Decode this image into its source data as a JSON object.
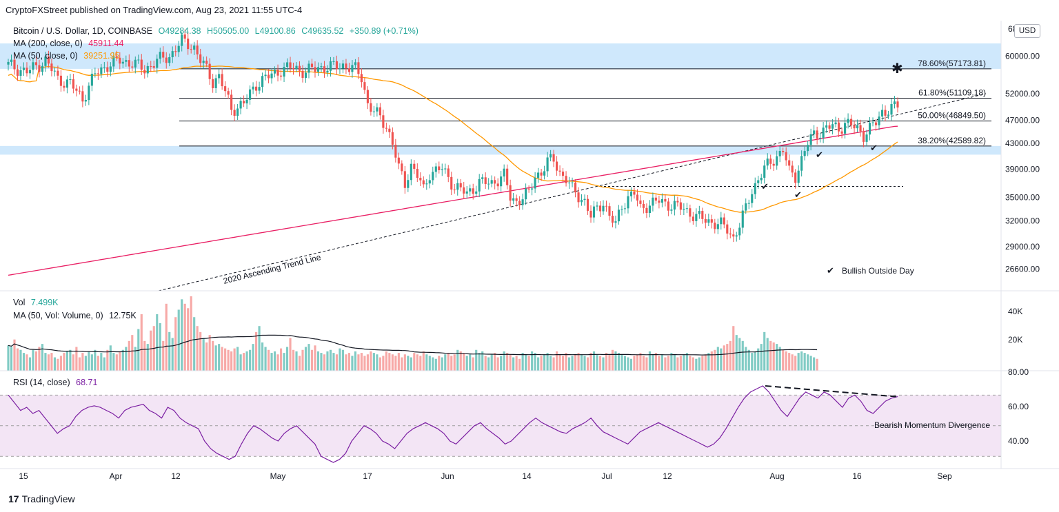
{
  "header": {
    "published": "CryptoFXStreet published on TradingView.com, Aug 23, 2021 11:55 UTC-4",
    "symbol": "Bitcoin / U.S. Dollar, 1D, COINBASE",
    "ohlc": {
      "o": "O49284.38",
      "h": "H50505.00",
      "l": "L49100.86",
      "c": "C49635.52",
      "chg": "+350.89 (+0.71%)"
    },
    "ma200_label": "MA (200, close, 0)",
    "ma200_value": "45911.44",
    "ma50_label": "MA (50, close, 0)",
    "ma50_value": "39251.95",
    "currency": "USD",
    "vol_label": "Vol",
    "vol_value": "7.499K",
    "volma_label": "MA (50, Vol: Volume, 0)",
    "volma_value": "12.75K",
    "rsi_label": "RSI (14, close)",
    "rsi_value": "68.71"
  },
  "brand": "TradingView",
  "colors": {
    "up": "#26a69a",
    "down": "#ef5350",
    "ma200": "#e91e63",
    "ma50": "#ff9800",
    "rsi": "#7b1fa2",
    "zone": "#bbdefb",
    "rsiband": "#f3e5f5"
  },
  "chart_data": {
    "type": "candlestick",
    "price_axis": {
      "ticks": [
        "60000.00",
        "52000.00",
        "47000.00",
        "43000.00",
        "39000.00",
        "35000.00",
        "32000.00",
        "29000.00",
        "26600.00"
      ],
      "top_label": "68",
      "range": [
        24500,
        68000
      ],
      "scale": "log"
    },
    "time_axis": {
      "ticks": [
        "15",
        "Apr",
        "12",
        "May",
        "17",
        "Jun",
        "14",
        "Jul",
        "12",
        "Aug",
        "16",
        "Sep"
      ]
    },
    "fib_levels": [
      {
        "label": "78.60%(57173.81)",
        "value": 57173.81
      },
      {
        "label": "61.80%(51109.18)",
        "value": 51109.18
      },
      {
        "label": "50.00%(46849.50)",
        "value": 46849.5
      },
      {
        "label": "38.20%(42589.82)",
        "value": 42589.82
      }
    ],
    "zones": [
      {
        "from": 57173.81,
        "to": 63000
      },
      {
        "from": 41200,
        "to": 42589.82
      }
    ],
    "support_line": 36500,
    "annotations": {
      "trendline": "2020 Ascending Trend Line",
      "legend": "Bullish Outside Day",
      "divergence": "Bearish Momentum Divergence",
      "target_marker": "✱",
      "check_marker": "✔"
    },
    "anchors": [
      [
        0,
        58000
      ],
      [
        6,
        56500
      ],
      [
        12,
        59000
      ],
      [
        16,
        55000
      ],
      [
        20,
        54000
      ],
      [
        24,
        51000
      ],
      [
        28,
        56000
      ],
      [
        32,
        58000
      ],
      [
        36,
        59000
      ],
      [
        40,
        58500
      ],
      [
        44,
        57000
      ],
      [
        48,
        59000
      ],
      [
        52,
        60000
      ],
      [
        56,
        63500
      ],
      [
        58,
        63000
      ],
      [
        60,
        62000
      ],
      [
        62,
        59000
      ],
      [
        64,
        57000
      ],
      [
        66,
        54500
      ],
      [
        68,
        55500
      ],
      [
        72,
        49000
      ],
      [
        76,
        50000
      ],
      [
        80,
        54000
      ],
      [
        84,
        55500
      ],
      [
        88,
        57000
      ],
      [
        92,
        57500
      ],
      [
        96,
        56500
      ],
      [
        100,
        57500
      ],
      [
        104,
        57500
      ],
      [
        108,
        58000
      ],
      [
        112,
        57000
      ],
      [
        114,
        55500
      ],
      [
        116,
        50000
      ],
      [
        118,
        48500
      ],
      [
        120,
        47500
      ],
      [
        122,
        46000
      ],
      [
        124,
        43000
      ],
      [
        126,
        39000
      ],
      [
        128,
        37000
      ],
      [
        130,
        39500
      ],
      [
        132,
        38000
      ],
      [
        134,
        36000
      ],
      [
        136,
        38500
      ],
      [
        140,
        39000
      ],
      [
        144,
        36500
      ],
      [
        148,
        35500
      ],
      [
        152,
        37000
      ],
      [
        156,
        37000
      ],
      [
        160,
        38000
      ],
      [
        162,
        35000
      ],
      [
        164,
        34500
      ],
      [
        168,
        35500
      ],
      [
        170,
        38000
      ],
      [
        172,
        38500
      ],
      [
        174,
        40000
      ],
      [
        176,
        40500
      ],
      [
        178,
        38500
      ],
      [
        180,
        37500
      ],
      [
        182,
        36000
      ],
      [
        186,
        34500
      ],
      [
        188,
        32500
      ],
      [
        190,
        33500
      ],
      [
        192,
        34500
      ],
      [
        194,
        32500
      ],
      [
        196,
        31500
      ],
      [
        198,
        34000
      ],
      [
        200,
        35000
      ],
      [
        202,
        35500
      ],
      [
        204,
        33500
      ],
      [
        206,
        34000
      ],
      [
        210,
        34500
      ],
      [
        214,
        34000
      ],
      [
        218,
        33500
      ],
      [
        222,
        32500
      ],
      [
        226,
        32000
      ],
      [
        230,
        31500
      ],
      [
        232,
        31000
      ],
      [
        234,
        30000
      ],
      [
        236,
        31500
      ],
      [
        238,
        33500
      ],
      [
        240,
        36000
      ],
      [
        242,
        37500
      ],
      [
        244,
        39000
      ],
      [
        246,
        40000
      ],
      [
        248,
        41000
      ],
      [
        250,
        42000
      ],
      [
        252,
        38500
      ],
      [
        254,
        38000
      ],
      [
        256,
        40500
      ],
      [
        258,
        43000
      ],
      [
        260,
        44500
      ],
      [
        262,
        45000
      ],
      [
        264,
        45500
      ],
      [
        266,
        46000
      ],
      [
        268,
        45500
      ],
      [
        270,
        46500
      ],
      [
        272,
        46000
      ],
      [
        274,
        45500
      ],
      [
        276,
        44500
      ],
      [
        278,
        45500
      ],
      [
        280,
        46500
      ],
      [
        282,
        48500
      ],
      [
        284,
        49000
      ],
      [
        286,
        49300
      ],
      [
        287,
        49600
      ]
    ],
    "volume": [
      17,
      16,
      21,
      15,
      14,
      12,
      11,
      9,
      14,
      13,
      16,
      18,
      12,
      11,
      12,
      9,
      8,
      10,
      12,
      13,
      14,
      11,
      16,
      9,
      12,
      10,
      13,
      11,
      14,
      10,
      12,
      9,
      14,
      17,
      12,
      11,
      13,
      14,
      16,
      20,
      24,
      16,
      28,
      38,
      20,
      18,
      27,
      30,
      38,
      32,
      20,
      45,
      26,
      22,
      36,
      41,
      48,
      45,
      42,
      50,
      36,
      30,
      26,
      22,
      19,
      24,
      20,
      17,
      18,
      16,
      15,
      14,
      13,
      15,
      16,
      11,
      12,
      13,
      14,
      18,
      26,
      30,
      19,
      16,
      14,
      12,
      13,
      11,
      15,
      12,
      16,
      22,
      14,
      13,
      10,
      14,
      16,
      18,
      14,
      17,
      13,
      12,
      11,
      13,
      14,
      12,
      11,
      15,
      14,
      11,
      12,
      10,
      13,
      11,
      12,
      10,
      11,
      13,
      12,
      11,
      9,
      10,
      13,
      12,
      11,
      10,
      12,
      9,
      11,
      10,
      9,
      12,
      11,
      10,
      13,
      11,
      10,
      9,
      8,
      10,
      9,
      11,
      12,
      10,
      11,
      14,
      13,
      12,
      10,
      11,
      9,
      14,
      12,
      13,
      10,
      9,
      11,
      12,
      9,
      10,
      13,
      12,
      11,
      9,
      10,
      8,
      12,
      11,
      10,
      13,
      12,
      9,
      10,
      11,
      12,
      10,
      9,
      13,
      11,
      10,
      12,
      9,
      10,
      11,
      12,
      11,
      10,
      9,
      12,
      13,
      11,
      10,
      9,
      12,
      11,
      14,
      13,
      12,
      11,
      10,
      9,
      8,
      10,
      11,
      12,
      10,
      9,
      13,
      11,
      12,
      10,
      11,
      9,
      10,
      12,
      11,
      9,
      10,
      11,
      12,
      10,
      9,
      8,
      9,
      10,
      11,
      12,
      13,
      14,
      16,
      15,
      17,
      18,
      20,
      30,
      24,
      22,
      20,
      16,
      14,
      12,
      13,
      15,
      18,
      26,
      22,
      20,
      19,
      18,
      16,
      14,
      13,
      12,
      11,
      10,
      12,
      13,
      12,
      11,
      10,
      9,
      8
    ],
    "rsi": [
      70,
      65,
      60,
      62,
      58,
      60,
      55,
      50,
      45,
      48,
      50,
      56,
      60,
      62,
      63,
      62,
      60,
      58,
      55,
      60,
      62,
      63,
      64,
      60,
      58,
      55,
      62,
      60,
      55,
      52,
      50,
      48,
      40,
      35,
      32,
      30,
      28,
      30,
      38,
      45,
      50,
      48,
      45,
      42,
      40,
      45,
      48,
      50,
      46,
      42,
      38,
      30,
      28,
      26,
      28,
      32,
      40,
      45,
      50,
      48,
      45,
      40,
      38,
      35,
      40,
      45,
      48,
      50,
      52,
      50,
      48,
      45,
      40,
      38,
      42,
      46,
      50,
      52,
      48,
      45,
      42,
      38,
      40,
      44,
      48,
      52,
      55,
      52,
      50,
      48,
      46,
      45,
      48,
      50,
      52,
      55,
      50,
      46,
      44,
      42,
      40,
      38,
      42,
      46,
      48,
      50,
      52,
      50,
      48,
      46,
      44,
      42,
      40,
      38,
      36,
      38,
      42,
      48,
      55,
      62,
      68,
      72,
      74,
      76,
      72,
      66,
      60,
      56,
      62,
      68,
      72,
      70,
      68,
      72,
      70,
      66,
      62,
      68,
      70,
      66,
      60,
      58,
      62,
      66,
      68,
      69
    ]
  }
}
